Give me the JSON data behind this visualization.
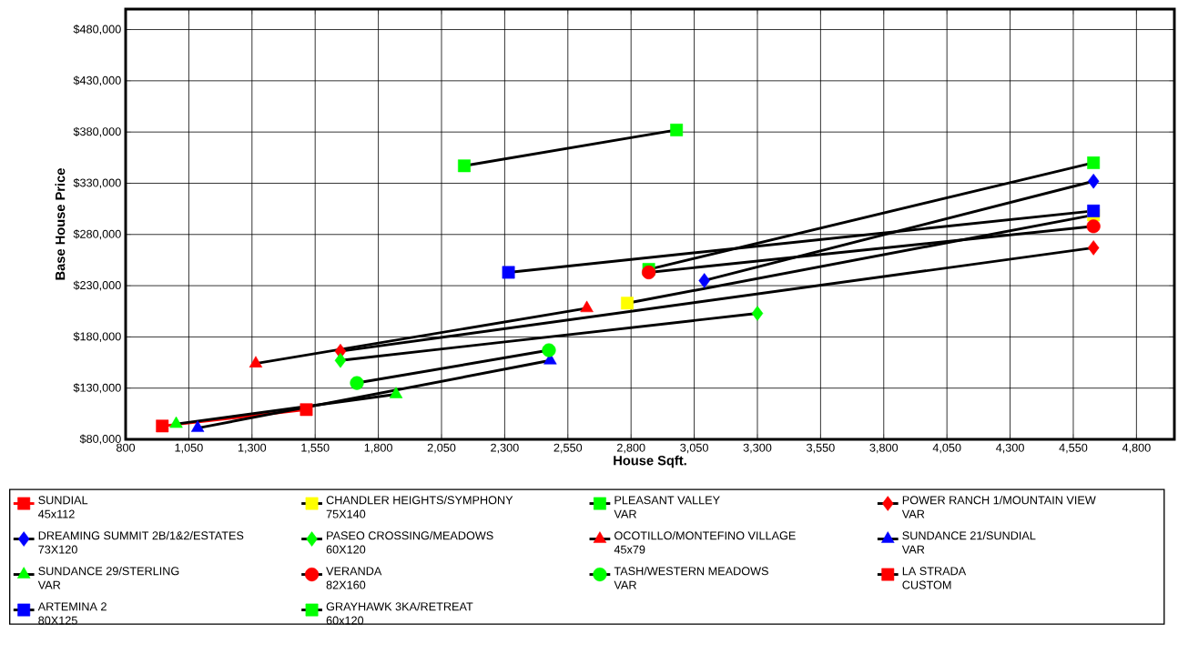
{
  "chart_data": {
    "type": "line",
    "xlabel": "House Sqft.",
    "ylabel": "Base House Price",
    "xlim": [
      800,
      4950
    ],
    "ylim": [
      80000,
      500000
    ],
    "xticks": [
      {
        "value": 800,
        "label": "800"
      },
      {
        "value": 1050,
        "label": "1,050"
      },
      {
        "value": 1300,
        "label": "1,300"
      },
      {
        "value": 1550,
        "label": "1,550"
      },
      {
        "value": 1800,
        "label": "1,800"
      },
      {
        "value": 2050,
        "label": "2,050"
      },
      {
        "value": 2300,
        "label": "2,300"
      },
      {
        "value": 2550,
        "label": "2,550"
      },
      {
        "value": 2800,
        "label": "2,800"
      },
      {
        "value": 3050,
        "label": "3,050"
      },
      {
        "value": 3300,
        "label": "3,300"
      },
      {
        "value": 3550,
        "label": "3,550"
      },
      {
        "value": 3800,
        "label": "3,800"
      },
      {
        "value": 4050,
        "label": "4,050"
      },
      {
        "value": 4300,
        "label": "4,300"
      },
      {
        "value": 4550,
        "label": "4,550"
      },
      {
        "value": 4800,
        "label": "4,800"
      }
    ],
    "yticks": [
      {
        "value": 80000,
        "label": "$80,000"
      },
      {
        "value": 130000,
        "label": "$130,000"
      },
      {
        "value": 180000,
        "label": "$180,000"
      },
      {
        "value": 230000,
        "label": "$230,000"
      },
      {
        "value": 280000,
        "label": "$280,000"
      },
      {
        "value": 330000,
        "label": "$330,000"
      },
      {
        "value": 380000,
        "label": "$380,000"
      },
      {
        "value": 430000,
        "label": "$430,000"
      },
      {
        "value": 480000,
        "label": "$480,000"
      }
    ],
    "grid": true,
    "legend": "bottom",
    "series": [
      {
        "name": "SUNDIAL\n45x112",
        "color": "#ff0000",
        "colors": [
          "#ff0000",
          "#ff0000"
        ],
        "marker": "square",
        "x": [
          945,
          1515
        ],
        "values": [
          93000,
          109000
        ]
      },
      {
        "name": "CHANDLER HEIGHTS/SYMPHONY\n75X140",
        "color": "#000000",
        "colors": [
          "#ffff00",
          "#ffff00"
        ],
        "marker": "square",
        "x": [
          2785,
          4630
        ],
        "values": [
          213000,
          299000
        ]
      },
      {
        "name": "PLEASANT VALLEY\nVAR",
        "color": "#000000",
        "colors": [
          "#00ff00",
          "#00ff00"
        ],
        "marker": "square",
        "x": [
          2870,
          4630
        ],
        "values": [
          246000,
          350000
        ]
      },
      {
        "name": "POWER RANCH 1/MOUNTAIN VIEW\nVAR",
        "color": "#000000",
        "colors": [
          "#ff0000",
          "#ff0000"
        ],
        "marker": "diamond",
        "x": [
          1650,
          4630
        ],
        "values": [
          166000,
          267000
        ]
      },
      {
        "name": "DREAMING SUMMIT 2B/1&2/ESTATES\n73X120",
        "color": "#000000",
        "colors": [
          "#0000ff",
          "#0000ff"
        ],
        "marker": "diamond",
        "x": [
          3090,
          4630
        ],
        "values": [
          235000,
          332000
        ]
      },
      {
        "name": "PASEO CROSSING/MEADOWS\n60X120",
        "color": "#000000",
        "colors": [
          "#00ff00",
          "#00ff00"
        ],
        "marker": "diamond",
        "x": [
          1650,
          3300
        ],
        "values": [
          157000,
          203000
        ]
      },
      {
        "name": "OCOTILLO/MONTEFINO VILLAGE\n45x79",
        "color": "#000000",
        "colors": [
          "#ff0000",
          "#ff0000"
        ],
        "marker": "triangle",
        "x": [
          1315,
          2625
        ],
        "values": [
          154000,
          208000
        ]
      },
      {
        "name": "SUNDANCE 21/SUNDIAL\nVAR",
        "color": "#000000",
        "colors": [
          "#0000ff",
          "#0000ff"
        ],
        "marker": "triangle",
        "x": [
          1085,
          2480
        ],
        "values": [
          91000,
          157000
        ]
      },
      {
        "name": "SUNDANCE 29/STERLING\nVAR",
        "color": "#000000",
        "colors": [
          "#00ff00",
          "#00ff00"
        ],
        "marker": "triangle",
        "x": [
          1000,
          1870
        ],
        "values": [
          95000,
          124000
        ]
      },
      {
        "name": "VERANDA\n82X160",
        "color": "#000000",
        "colors": [
          "#ff0000",
          "#ff0000"
        ],
        "marker": "circle",
        "x": [
          2870,
          4630
        ],
        "values": [
          243000,
          288000
        ]
      },
      {
        "name": "TASH/WESTERN MEADOWS\nVAR",
        "color": "#000000",
        "colors": [
          "#00ff00",
          "#00ff00"
        ],
        "marker": "circle",
        "x": [
          1715,
          2475
        ],
        "values": [
          135000,
          167000
        ]
      },
      {
        "name": "LA STRADA\nCUSTOM",
        "color": "#000000",
        "colors": [
          "#ff0000"
        ],
        "marker": "square",
        "values": [
          null
        ]
      },
      {
        "name": "ARTEMINA 2\n80X125",
        "color": "#000000",
        "colors": [
          "#0000ff",
          "#0000ff"
        ],
        "marker": "square",
        "x": [
          2315,
          4630
        ],
        "values": [
          243000,
          303000
        ]
      },
      {
        "name": "GRAYHAWK 3KA/RETREAT\n60x120",
        "color": "#000000",
        "colors": [
          "#00ff00",
          "#00ff00"
        ],
        "marker": "square",
        "x": [
          2140,
          2980
        ],
        "values": [
          347000,
          382000
        ]
      }
    ]
  }
}
